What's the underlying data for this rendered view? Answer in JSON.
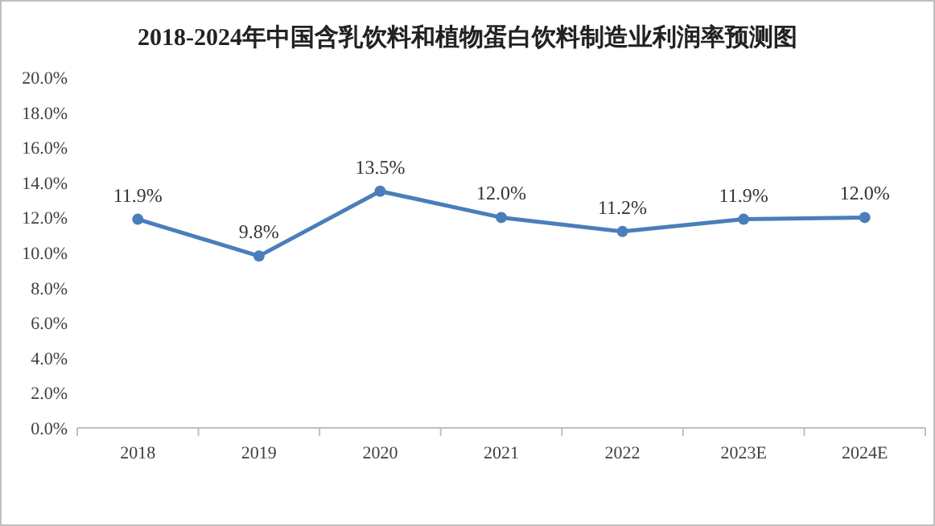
{
  "chart_data": {
    "type": "line",
    "title": "2018-2024年中国含乳饮料和植物蛋白饮料制造业利润率预测图",
    "categories": [
      "2018",
      "2019",
      "2020",
      "2021",
      "2022",
      "2023E",
      "2024E"
    ],
    "series": [
      {
        "color": "#4a7ebb",
        "values": [
          11.9,
          9.8,
          13.5,
          12.0,
          11.2,
          11.9,
          12.0
        ],
        "value_labels": [
          "11.9%",
          "9.8%",
          "13.5%",
          "12.0%",
          "11.2%",
          "11.9%",
          "12.0%"
        ]
      }
    ],
    "ylim": [
      0,
      20
    ],
    "yticks": [
      {
        "value": 0,
        "label": "0.0%"
      },
      {
        "value": 2,
        "label": "2.0%"
      },
      {
        "value": 4,
        "label": "4.0%"
      },
      {
        "value": 6,
        "label": "6.0%"
      },
      {
        "value": 8,
        "label": "8.0%"
      },
      {
        "value": 10,
        "label": "10.0%"
      },
      {
        "value": 12,
        "label": "12.0%"
      },
      {
        "value": 14,
        "label": "14.0%"
      },
      {
        "value": 16,
        "label": "16.0%"
      },
      {
        "value": 18,
        "label": "18.0%"
      },
      {
        "value": 20,
        "label": "20.0%"
      }
    ],
    "grid": false,
    "marker": "circle",
    "line_style": "solid"
  }
}
